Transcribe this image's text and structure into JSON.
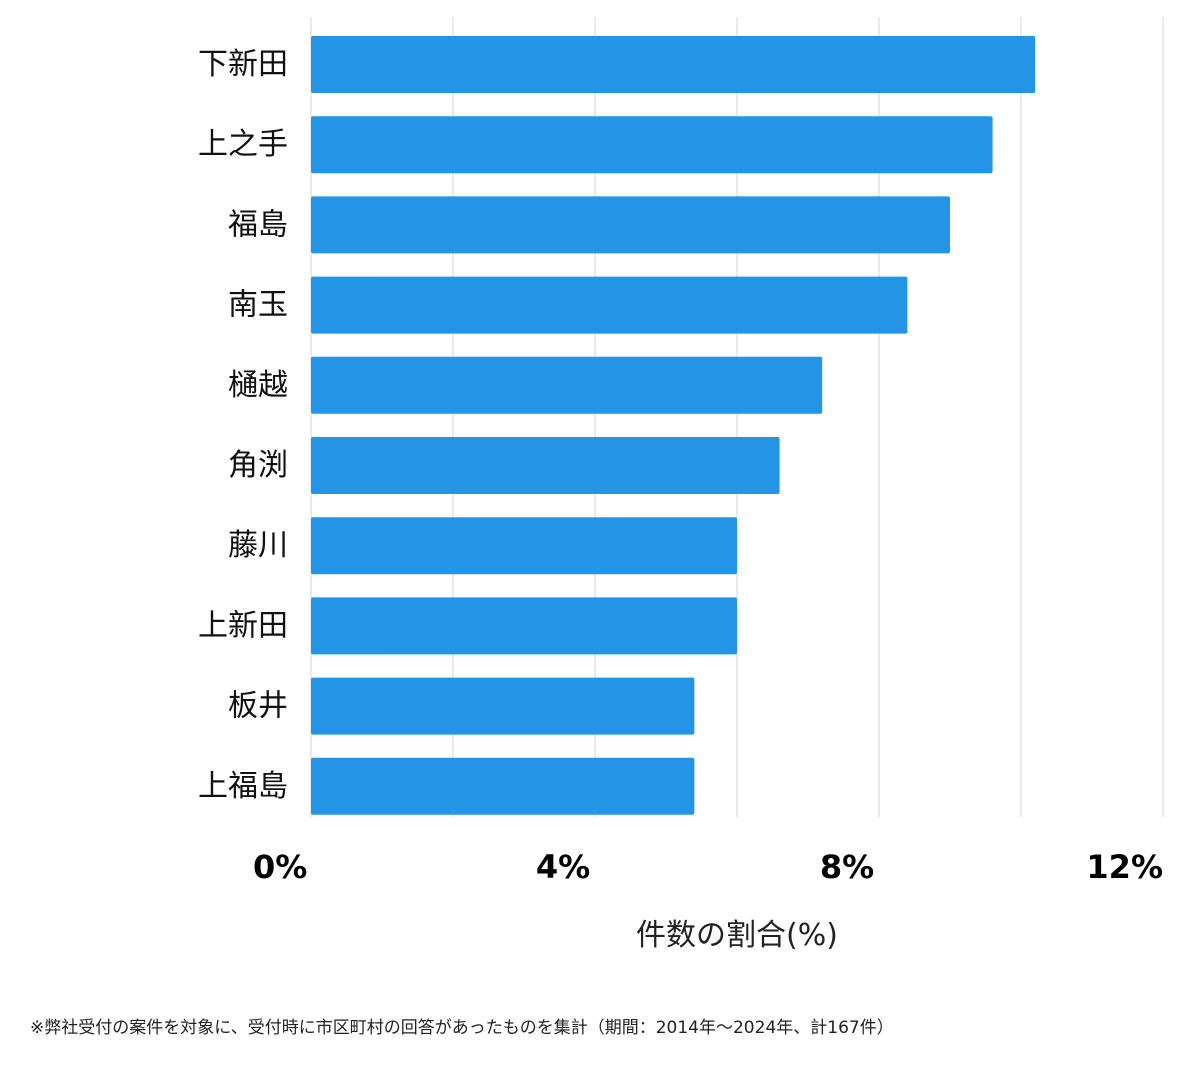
{
  "chart_data": {
    "type": "bar",
    "orientation": "horizontal",
    "categories": [
      "下新田",
      "上之手",
      "福島",
      "南玉",
      "樋越",
      "角渕",
      "藤川",
      "上新田",
      "板井",
      "上福島"
    ],
    "values": [
      10.2,
      9.6,
      9.0,
      8.4,
      7.2,
      6.6,
      6.0,
      6.0,
      5.4,
      5.4
    ],
    "xlabel": "件数の割合(%)",
    "ylabel": "",
    "xlim": [
      0,
      12
    ],
    "xticks": [
      0,
      4,
      8,
      12
    ],
    "xtick_labels": [
      "0%",
      "4%",
      "8%",
      "12%"
    ],
    "grid": true,
    "bar_color": "#2494e6",
    "grid_color": "#dddddd"
  },
  "footnote": "※弊社受付の案件を対象に、受付時に市区町村の回答があったものを集計（期間：2014年～2024年、計167件）"
}
